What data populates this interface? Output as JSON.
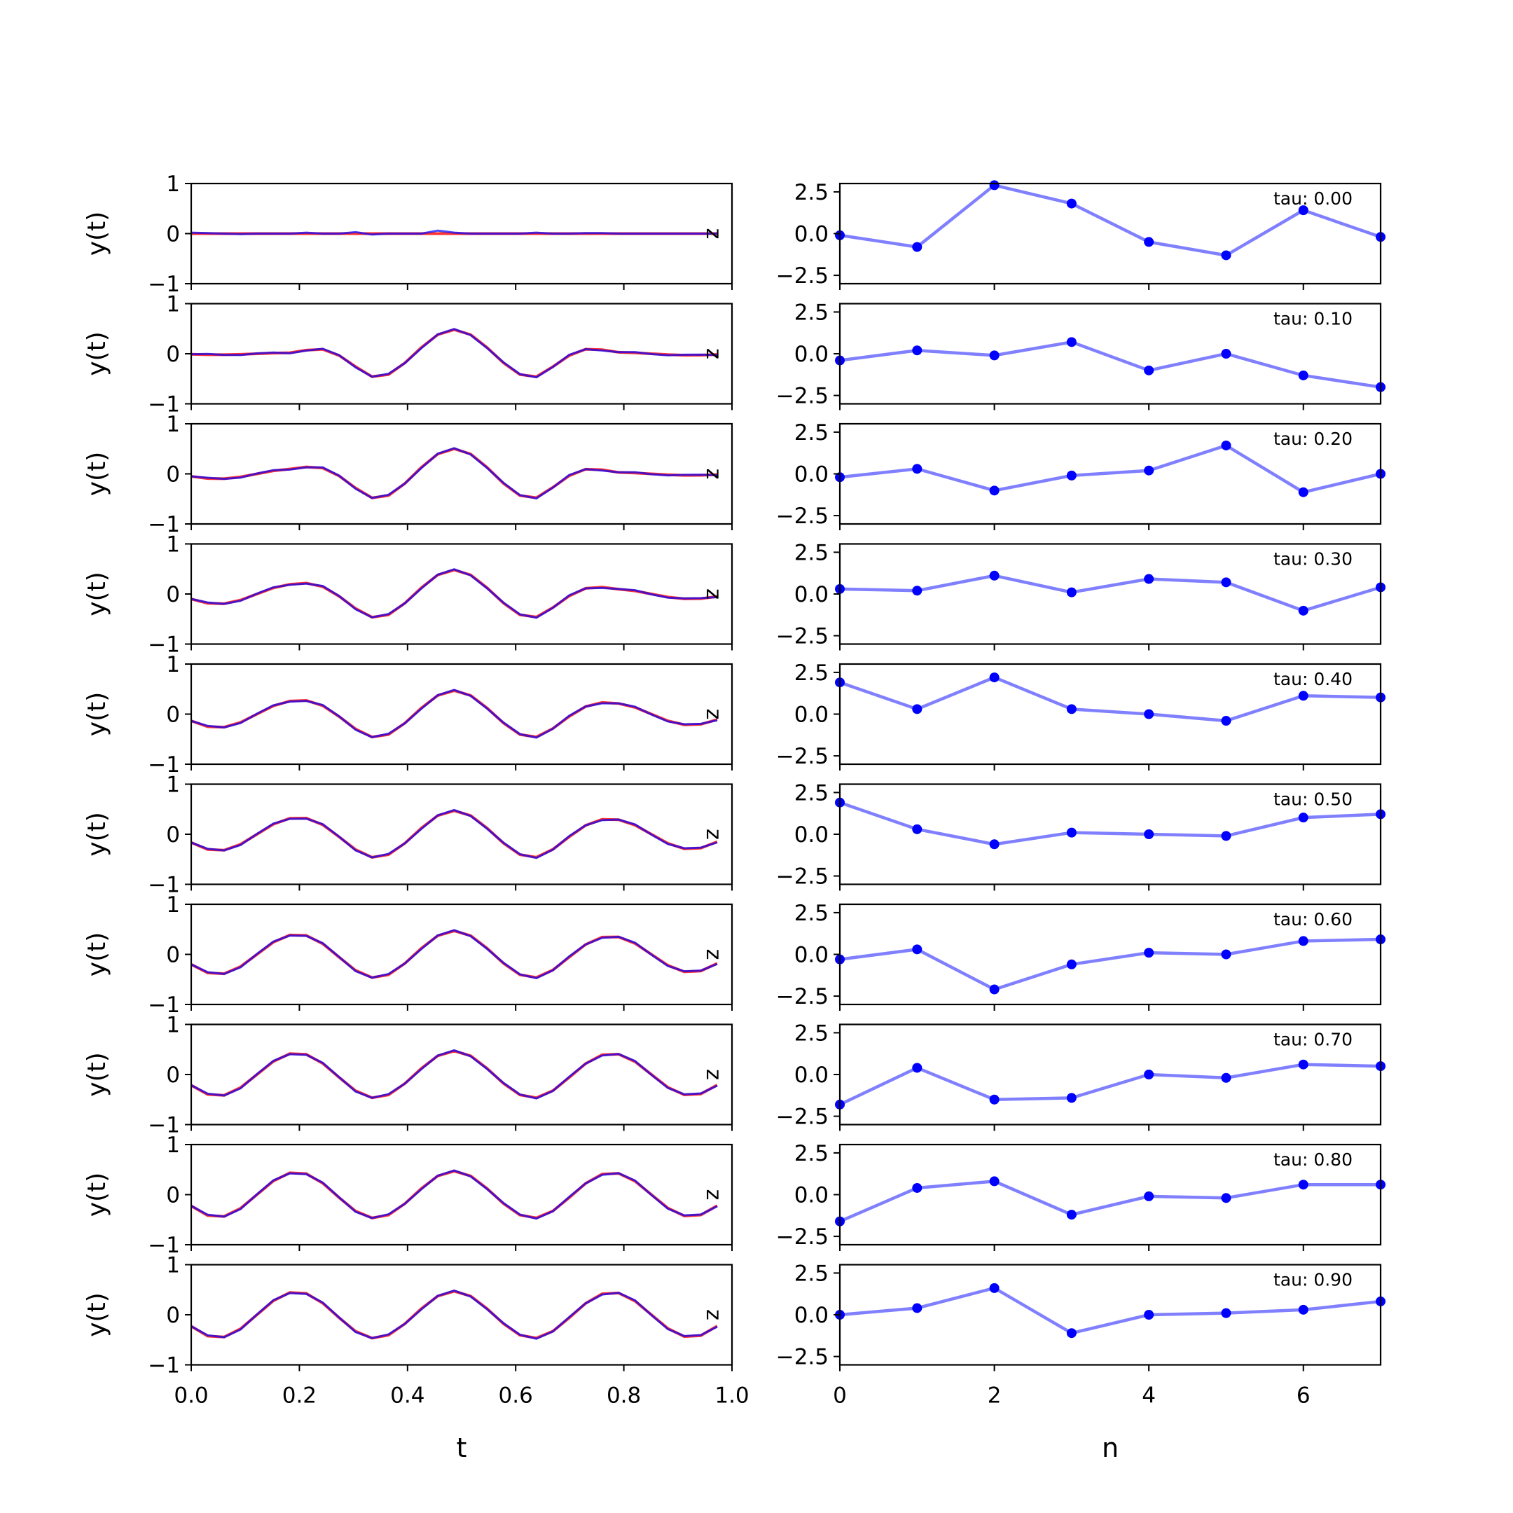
{
  "figure": {
    "left_column": {
      "ylabel": "y(t)",
      "xlabel": "t",
      "yticks": [
        -1,
        0,
        1
      ],
      "xticks": [
        "0.0",
        "0.2",
        "0.4",
        "0.6",
        "0.8",
        "1.0"
      ],
      "xlim": [
        0,
        1
      ],
      "ylim": [
        -1,
        1
      ],
      "side_label": "z",
      "series_colors": {
        "reference": "#ff0000",
        "prediction": "#0000ff"
      }
    },
    "right_column": {
      "xlabel": "n",
      "yticks": [
        -2.5,
        0.0,
        2.5
      ],
      "ytick_labels": [
        "−2.5",
        "0.0",
        "2.5"
      ],
      "xticks": [
        "0",
        "2",
        "4",
        "6"
      ],
      "xlim": [
        0,
        7
      ],
      "ylim": [
        -3,
        3
      ],
      "line_color": "#8080ff",
      "marker_color": "#0000ff"
    }
  },
  "chart_data": [
    {
      "type": "line",
      "panel": "left",
      "row": 0,
      "y_ref": [
        0,
        0,
        0,
        0,
        0,
        0,
        0,
        0,
        0,
        0,
        0,
        0,
        0,
        0,
        0,
        0,
        0,
        0,
        0,
        0,
        0,
        0,
        0,
        0,
        0,
        0,
        0,
        0,
        0,
        0,
        0,
        0,
        0
      ],
      "y_pred": [
        0.02,
        0.01,
        0,
        -0.01,
        0,
        0,
        0,
        0.02,
        0,
        0,
        0.03,
        -0.02,
        0,
        0,
        0,
        0.06,
        0.02,
        0,
        0,
        0,
        0,
        0.02,
        0,
        0,
        0.01,
        0.01,
        0,
        0,
        0,
        0,
        0,
        0,
        0
      ]
    },
    {
      "type": "line",
      "panel": "left",
      "row": 1,
      "amps": [
        0.02,
        0.48,
        0.03
      ]
    },
    {
      "type": "line",
      "panel": "left",
      "row": 2,
      "amps": [
        0.1,
        0.5,
        0.03
      ]
    },
    {
      "type": "line",
      "panel": "left",
      "row": 3,
      "amps": [
        0.2,
        0.48,
        0.1
      ]
    },
    {
      "type": "line",
      "panel": "left",
      "row": 4,
      "amps": [
        0.27,
        0.47,
        0.22
      ]
    },
    {
      "type": "line",
      "panel": "left",
      "row": 5,
      "amps": [
        0.33,
        0.47,
        0.3
      ]
    },
    {
      "type": "line",
      "panel": "left",
      "row": 6,
      "amps": [
        0.4,
        0.47,
        0.36
      ]
    },
    {
      "type": "line",
      "panel": "left",
      "row": 7,
      "amps": [
        0.43,
        0.47,
        0.42
      ]
    },
    {
      "type": "line",
      "panel": "left",
      "row": 8,
      "amps": [
        0.45,
        0.47,
        0.44
      ]
    },
    {
      "type": "line",
      "panel": "left",
      "row": 9,
      "amps": [
        0.46,
        0.47,
        0.45
      ]
    },
    {
      "type": "line",
      "panel": "right",
      "row": 0,
      "label": "tau: 0.00",
      "x": [
        0,
        1,
        2,
        3,
        4,
        5,
        6,
        7
      ],
      "y": [
        -0.1,
        -0.8,
        2.9,
        1.8,
        -0.5,
        -1.3,
        1.4,
        -0.2
      ]
    },
    {
      "type": "line",
      "panel": "right",
      "row": 1,
      "label": "tau: 0.10",
      "x": [
        0,
        1,
        2,
        3,
        4,
        5,
        6,
        7
      ],
      "y": [
        -0.4,
        0.2,
        -0.1,
        0.7,
        -1.0,
        0.0,
        -1.3,
        -2.0
      ]
    },
    {
      "type": "line",
      "panel": "right",
      "row": 2,
      "label": "tau: 0.20",
      "x": [
        0,
        1,
        2,
        3,
        4,
        5,
        6,
        7
      ],
      "y": [
        -0.2,
        0.3,
        -1.0,
        -0.1,
        0.2,
        1.7,
        -1.1,
        0.0
      ]
    },
    {
      "type": "line",
      "panel": "right",
      "row": 3,
      "label": "tau: 0.30",
      "x": [
        0,
        1,
        2,
        3,
        4,
        5,
        6,
        7
      ],
      "y": [
        0.3,
        0.2,
        1.1,
        0.1,
        0.9,
        0.7,
        -1.0,
        0.4
      ]
    },
    {
      "type": "line",
      "panel": "right",
      "row": 4,
      "label": "tau: 0.40",
      "x": [
        0,
        1,
        2,
        3,
        4,
        5,
        6,
        7
      ],
      "y": [
        1.9,
        0.3,
        2.2,
        0.3,
        0.0,
        -0.4,
        1.1,
        1.0
      ]
    },
    {
      "type": "line",
      "panel": "right",
      "row": 5,
      "label": "tau: 0.50",
      "x": [
        0,
        1,
        2,
        3,
        4,
        5,
        6,
        7
      ],
      "y": [
        1.9,
        0.3,
        -0.6,
        0.1,
        0.0,
        -0.1,
        1.0,
        1.2
      ]
    },
    {
      "type": "line",
      "panel": "right",
      "row": 6,
      "label": "tau: 0.60",
      "x": [
        0,
        1,
        2,
        3,
        4,
        5,
        6,
        7
      ],
      "y": [
        -0.3,
        0.3,
        -2.1,
        -0.6,
        0.1,
        0.0,
        0.8,
        0.9
      ]
    },
    {
      "type": "line",
      "panel": "right",
      "row": 7,
      "label": "tau: 0.70",
      "x": [
        0,
        1,
        2,
        3,
        4,
        5,
        6,
        7
      ],
      "y": [
        -1.8,
        0.4,
        -1.5,
        -1.4,
        0.0,
        -0.2,
        0.6,
        0.5
      ]
    },
    {
      "type": "line",
      "panel": "right",
      "row": 8,
      "label": "tau: 0.80",
      "x": [
        0,
        1,
        2,
        3,
        4,
        5,
        6,
        7
      ],
      "y": [
        -1.6,
        0.4,
        0.8,
        -1.2,
        -0.1,
        -0.2,
        0.6,
        0.6
      ]
    },
    {
      "type": "line",
      "panel": "right",
      "row": 9,
      "label": "tau: 0.90",
      "x": [
        0,
        1,
        2,
        3,
        4,
        5,
        6,
        7
      ],
      "y": [
        0.0,
        0.4,
        1.6,
        -1.1,
        0.0,
        0.1,
        0.3,
        0.8
      ]
    }
  ]
}
